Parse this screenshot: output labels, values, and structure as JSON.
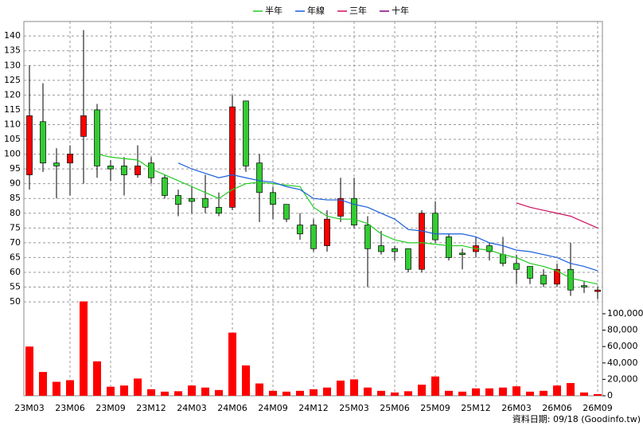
{
  "chart_data": {
    "type": "candlestick",
    "categories": [
      "23M03",
      null,
      null,
      "23M06",
      null,
      null,
      "23M09",
      null,
      null,
      "23M12",
      null,
      null,
      "24M03",
      null,
      null,
      "24M06",
      null,
      null,
      "24M09",
      null,
      null,
      "24M12",
      null,
      null,
      "25M03",
      null,
      null,
      "25M06",
      null,
      null,
      "25M09",
      null,
      null,
      "25M12",
      null,
      null,
      "26M03",
      null,
      null,
      "26M06",
      null,
      null,
      "26M09"
    ],
    "open": [
      93,
      111,
      97,
      97,
      106,
      115,
      96,
      96,
      93,
      97,
      92,
      86,
      85,
      85,
      82,
      82,
      118,
      97,
      87,
      83,
      76,
      76,
      69,
      79,
      85,
      76,
      69,
      68,
      68,
      61,
      80,
      72,
      66.5,
      67,
      69,
      66,
      63,
      62,
      59,
      56,
      61,
      55.5,
      53.5
    ],
    "high": [
      130,
      124,
      102,
      103,
      142,
      117,
      98,
      99,
      103,
      99,
      93,
      88,
      89,
      93,
      87,
      120,
      118,
      100,
      89,
      83,
      80,
      78,
      81,
      92,
      92,
      79,
      74,
      69,
      68,
      81,
      84,
      73,
      68,
      72,
      70,
      72,
      66,
      62,
      61,
      63,
      70,
      57,
      55
    ],
    "low": [
      88,
      94,
      85,
      86,
      90,
      92,
      91,
      86,
      92,
      90,
      85,
      79,
      80,
      80,
      79,
      81,
      94,
      77,
      78,
      77,
      71,
      67,
      67,
      77,
      75,
      55,
      66,
      64,
      60,
      60,
      70,
      64,
      61,
      65,
      64,
      62,
      56,
      56,
      55,
      55,
      52,
      53,
      51
    ],
    "close": [
      113,
      97,
      96,
      100,
      113,
      96,
      95,
      93,
      96,
      92,
      86,
      83,
      84,
      82,
      80,
      116,
      96,
      87,
      83,
      78,
      73,
      68,
      78,
      85,
      76,
      68,
      67,
      67,
      61,
      80,
      71,
      65,
      66,
      69,
      67,
      63,
      61,
      58,
      56,
      61,
      54,
      55,
      54
    ],
    "up_color": "#ff0000",
    "down_color": "#33cc33",
    "series": [
      {
        "name": "半年",
        "color": "#22cc22",
        "values": [
          null,
          null,
          null,
          null,
          null,
          100,
          99,
          98.5,
          98,
          95,
          93,
          91,
          89,
          87,
          85,
          88,
          90,
          90.5,
          90,
          89.5,
          89,
          82,
          79,
          78,
          78,
          76.5,
          73,
          71,
          70,
          70,
          69.5,
          69,
          69,
          68,
          67.5,
          66,
          65,
          63,
          62,
          60.5,
          58,
          57,
          56
        ]
      },
      {
        "name": "年線",
        "color": "#1a5fdd",
        "values": [
          null,
          null,
          null,
          null,
          null,
          null,
          null,
          null,
          null,
          null,
          null,
          97,
          95,
          93.5,
          92,
          93,
          92,
          91,
          90.5,
          89,
          88,
          85,
          84.5,
          84.5,
          83,
          82,
          80,
          78,
          74.5,
          74,
          73,
          73,
          73,
          72,
          70,
          69,
          67.5,
          67,
          66,
          65,
          63,
          62,
          60.5
        ]
      },
      {
        "name": "三年",
        "color": "#cc1160",
        "values": [
          null,
          null,
          null,
          null,
          null,
          null,
          null,
          null,
          null,
          null,
          null,
          null,
          null,
          null,
          null,
          null,
          null,
          null,
          null,
          null,
          null,
          null,
          null,
          null,
          null,
          null,
          null,
          null,
          null,
          null,
          null,
          null,
          null,
          null,
          null,
          null,
          83.5,
          82,
          81,
          80,
          79,
          77,
          75
        ]
      },
      {
        "name": "十年",
        "color": "#800080",
        "values": [
          null,
          null,
          null,
          null,
          null,
          null,
          null,
          null,
          null,
          null,
          null,
          null,
          null,
          null,
          null,
          null,
          null,
          null,
          null,
          null,
          null,
          null,
          null,
          null,
          null,
          null,
          null,
          null,
          null,
          null,
          null,
          null,
          null,
          null,
          null,
          null,
          null,
          null,
          null,
          null,
          null,
          null,
          null
        ]
      }
    ],
    "ylim": [
      48.4,
      144.9
    ],
    "yticks": [
      50,
      55,
      60,
      65,
      70,
      75,
      80,
      85,
      90,
      95,
      100,
      105,
      110,
      115,
      120,
      125,
      130,
      135,
      140
    ],
    "volume": {
      "color": "#ff0000",
      "values": [
        60000,
        29000,
        17000,
        19000,
        115000,
        42000,
        11000,
        12500,
        21000,
        8000,
        5000,
        5500,
        12500,
        10000,
        7000,
        77000,
        37000,
        15000,
        6000,
        5000,
        6000,
        8000,
        10000,
        18500,
        20000,
        10000,
        6000,
        4000,
        5500,
        13500,
        23500,
        6000,
        5000,
        9000,
        9000,
        10000,
        11500,
        5000,
        6000,
        12500,
        15500,
        4000,
        2000
      ],
      "ylim": [
        0,
        120000
      ],
      "yticks": [
        0,
        {
          "value": 20000,
          "label": "20,000"
        },
        {
          "value": 40000,
          "label": "40,000"
        },
        {
          "value": 60000,
          "label": "60,000"
        },
        {
          "value": 80000,
          "label": "80,000"
        },
        {
          "value": 100000,
          "label": "100,000"
        }
      ]
    },
    "grid": true,
    "footnote": "資料日期: 09/18 (Goodinfo.tw)"
  }
}
